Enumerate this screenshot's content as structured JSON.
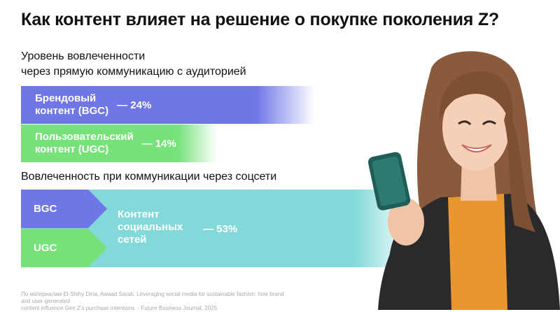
{
  "title": "Как контент влияет на решение о покупке поколения Z?",
  "section1": {
    "line1": "Уровень вовлеченности",
    "line2": "через прямую коммуникацию с аудиторией"
  },
  "section2": "Вовлеченность при коммуникации через соцсети",
  "chart_data": {
    "type": "bar",
    "series": [
      {
        "group": "direct",
        "label_line1": "Брендовый",
        "label_line2": "контент (BGC)",
        "value": 24,
        "value_text": "— 24%"
      },
      {
        "group": "direct",
        "label_line1": "Пользовательский",
        "label_line2": "контент (UGC)",
        "value": 14,
        "value_text": "— 14%"
      },
      {
        "group": "social",
        "value": 53,
        "value_text": "— 53%",
        "label_line1": "Контент",
        "label_line2": "социальных",
        "label_line3": "сетей",
        "inputs": [
          "BGC",
          "UGC"
        ]
      }
    ]
  },
  "source": {
    "line1": "По материалам El-Shihy Dina, Awaad Sarah. Leveraging social media for sustainable fashion: how brand and user-generated",
    "line2": "content influence Gen Z's purchase intentions. - Future Business Journal, 2025"
  },
  "colors": {
    "bgc": "#6f76e6",
    "ugc": "#77e27a",
    "social": "#83d9d9"
  }
}
